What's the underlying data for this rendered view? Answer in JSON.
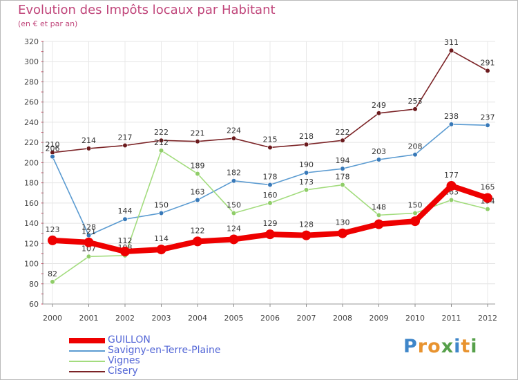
{
  "title": "Evolution des Impôts locaux par Habitant",
  "subtitle": "(en € et par an)",
  "logo": {
    "text": "Proxiti",
    "letters": [
      {
        "ch": "P",
        "color": "#3f86c9"
      },
      {
        "ch": "r",
        "color": "#e8932f"
      },
      {
        "ch": "o",
        "color": "#e8932f"
      },
      {
        "ch": "x",
        "color": "#56a04a"
      },
      {
        "ch": "i",
        "color": "#3f86c9"
      },
      {
        "ch": "t",
        "color": "#e8932f"
      },
      {
        "ch": "i",
        "color": "#56a04a"
      }
    ]
  },
  "chart_data": {
    "type": "line",
    "title": "Evolution des Impôts locaux par Habitant",
    "subtitle": "(en € et par an)",
    "xlabel": "",
    "ylabel": "",
    "categories": [
      "2000",
      "2001",
      "2002",
      "2003",
      "2004",
      "2005",
      "2006",
      "2007",
      "2008",
      "2009",
      "2010",
      "2011",
      "2012"
    ],
    "ylim": [
      60,
      320
    ],
    "yticks": [
      60,
      80,
      100,
      120,
      140,
      160,
      180,
      200,
      220,
      240,
      260,
      280,
      300,
      320
    ],
    "grid": true,
    "legend_position": "bottom-left",
    "series": [
      {
        "name": "Cisery",
        "color": "#7b2326",
        "marker": "#6b1a1d",
        "values": [
          210,
          214,
          217,
          222,
          221,
          224,
          215,
          218,
          222,
          249,
          253,
          311,
          291
        ],
        "labels": [
          "210",
          "214",
          "217",
          "222",
          "221",
          "224",
          "215",
          "218",
          "222",
          "249",
          "253",
          "311",
          "291"
        ]
      },
      {
        "name": "Savigny-en-Terre-Plaine",
        "color": "#5b9bd1",
        "marker": "#3879b8",
        "values": [
          206,
          128,
          144,
          150,
          163,
          182,
          178,
          190,
          194,
          203,
          208,
          238,
          237
        ],
        "labels": [
          "206",
          "128",
          "144",
          "150",
          "163",
          "182",
          "178",
          "190",
          "194",
          "203",
          "208",
          "238",
          "237"
        ]
      },
      {
        "name": "Vignes",
        "color": "#a3dc7e",
        "marker": "#8fcd68",
        "values": [
          82,
          107,
          108,
          212,
          189,
          150,
          160,
          173,
          178,
          148,
          150,
          163,
          154
        ],
        "labels": [
          "82",
          "107",
          "108",
          "212",
          "189",
          "150",
          "160",
          "173",
          "178",
          "148",
          "150",
          "163",
          "154"
        ]
      },
      {
        "name": "GUILLON",
        "color": "#ee0000",
        "marker": "#ee0000",
        "values": [
          123,
          121,
          112,
          114,
          122,
          124,
          129,
          128,
          130,
          139,
          142,
          177,
          165
        ],
        "labels": [
          "123",
          "121",
          "112",
          "114",
          "122",
          "124",
          "129",
          "128",
          "130",
          "",
          "",
          "177",
          "165"
        ]
      }
    ],
    "legend_order": [
      "GUILLON",
      "Savigny-en-Terre-Plaine",
      "Vignes",
      "Cisery"
    ]
  }
}
